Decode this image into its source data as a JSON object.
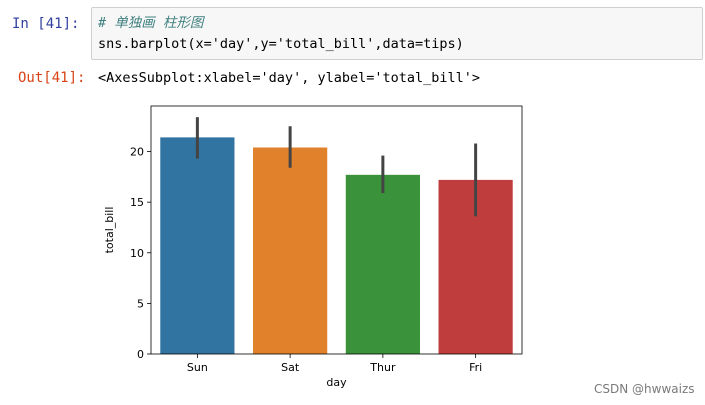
{
  "cell": {
    "in_prompt": "In  [41]:",
    "code_comment": "# 单独画 柱形图",
    "code_line": "sns.barplot(x='day',y='total_bill',data=tips)",
    "out_prompt": "Out[41]:",
    "output_text": "<AxesSubplot:xlabel='day', ylabel='total_bill'>"
  },
  "watermark": "CSDN @hwwaizs",
  "chart_data": {
    "type": "bar",
    "title": "",
    "xlabel": "day",
    "ylabel": "total_bill",
    "categories": [
      "Sun",
      "Sat",
      "Thur",
      "Fri"
    ],
    "values": [
      21.4,
      20.4,
      17.7,
      17.2
    ],
    "error_low": [
      19.3,
      18.4,
      15.9,
      13.6
    ],
    "error_high": [
      23.4,
      22.5,
      19.6,
      20.8
    ],
    "colors": [
      "#3274a1",
      "#e1812c",
      "#3a923a",
      "#c03d3e"
    ],
    "error_color": "#444444",
    "ylim": [
      0,
      24.5
    ],
    "yticks": [
      0,
      5,
      10,
      15,
      20
    ],
    "grid": false
  }
}
